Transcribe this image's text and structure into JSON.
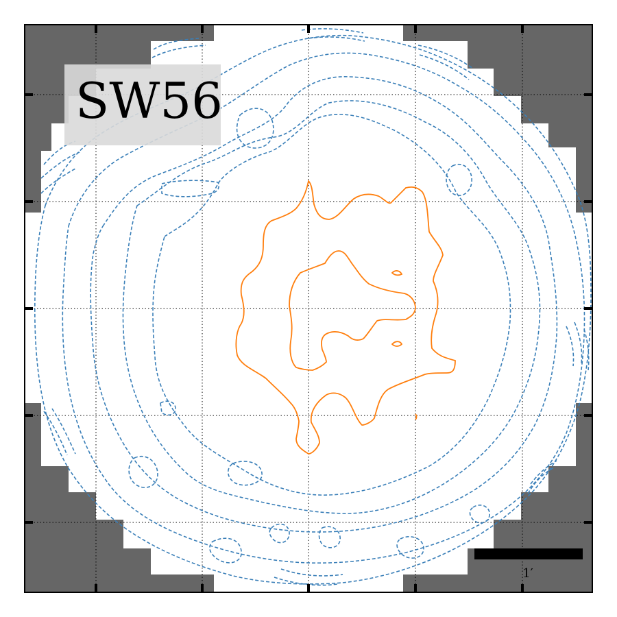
{
  "figure": {
    "field_name": "SW56",
    "scale_bar_label": "1′",
    "colors": {
      "masked": "#666666",
      "frame": "#000000",
      "grid": "#000000",
      "negative_contour": "#3a7fb8",
      "positive_contour": "#ff7f0e",
      "label_box": "#d9d9d9",
      "scale_bar": "#000000"
    },
    "grid": "dotted",
    "contour_styles": {
      "negative": "dashed",
      "positive": "solid"
    }
  }
}
